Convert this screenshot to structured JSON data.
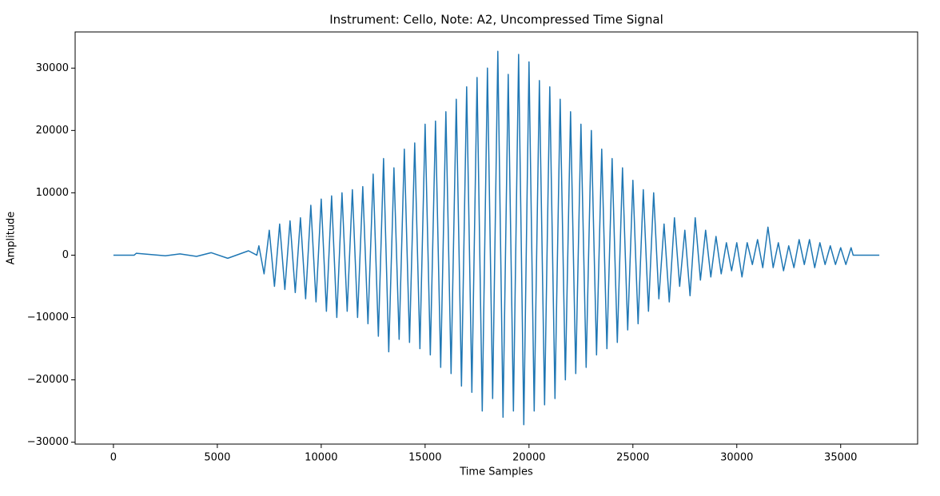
{
  "chart_data": {
    "type": "line",
    "title": "Instrument: Cello, Note: A2, Uncompressed Time Signal",
    "xlabel": "Time Samples",
    "ylabel": "Amplitude",
    "x": [
      0,
      1000,
      1100,
      2500,
      3200,
      4000,
      4700,
      5500,
      6500,
      6900,
      7000,
      7250,
      7500,
      7750,
      8000,
      8250,
      8500,
      8750,
      9000,
      9250,
      9500,
      9750,
      10000,
      10250,
      10500,
      10750,
      11000,
      11250,
      11500,
      11750,
      12000,
      12250,
      12500,
      12750,
      13000,
      13250,
      13500,
      13750,
      14000,
      14250,
      14500,
      14750,
      15000,
      15250,
      15500,
      15750,
      16000,
      16250,
      16500,
      16750,
      17000,
      17250,
      17500,
      17750,
      18000,
      18250,
      18500,
      18750,
      19000,
      19250,
      19500,
      19750,
      20000,
      20250,
      20500,
      20750,
      21000,
      21250,
      21500,
      21750,
      22000,
      22250,
      22500,
      22750,
      23000,
      23250,
      23500,
      23750,
      24000,
      24250,
      24500,
      24750,
      25000,
      25250,
      25500,
      25750,
      26000,
      26250,
      26500,
      26750,
      27000,
      27250,
      27500,
      27750,
      28000,
      28250,
      28500,
      28750,
      29000,
      29250,
      29500,
      29750,
      30000,
      30250,
      30500,
      30750,
      31000,
      31250,
      31500,
      31750,
      32000,
      32250,
      32500,
      32750,
      33000,
      33250,
      33500,
      33750,
      34000,
      34250,
      34500,
      34750,
      35000,
      35250,
      35500,
      35600,
      36860
    ],
    "series": [
      {
        "name": "signal",
        "color": "#1f77b4",
        "values": [
          0,
          0,
          300,
          -100,
          200,
          -200,
          400,
          -500,
          700,
          0,
          1500,
          -3000,
          4000,
          -5000,
          5000,
          -5500,
          5500,
          -6000,
          6000,
          -7000,
          8000,
          -7500,
          9000,
          -9000,
          9500,
          -10000,
          10000,
          -9000,
          10500,
          -10000,
          11000,
          -11000,
          13000,
          -13000,
          15500,
          -15500,
          14000,
          -13500,
          17000,
          -14000,
          18000,
          -15000,
          21000,
          -16000,
          21500,
          -18000,
          23000,
          -19000,
          25000,
          -21000,
          27000,
          -22000,
          28500,
          -25000,
          30000,
          -23000,
          32700,
          -26000,
          29000,
          -25000,
          32200,
          -27200,
          31000,
          -25000,
          28000,
          -24000,
          27000,
          -23000,
          25000,
          -20000,
          23000,
          -19000,
          21000,
          -18000,
          20000,
          -16000,
          17000,
          -15000,
          15500,
          -14000,
          14000,
          -12000,
          12000,
          -11000,
          10500,
          -9000,
          10000,
          -7000,
          5000,
          -7500,
          6000,
          -5000,
          4000,
          -6500,
          6000,
          -4000,
          4000,
          -3500,
          3000,
          -3000,
          2000,
          -2500,
          2000,
          -3500,
          2000,
          -1500,
          2500,
          -2000,
          4500,
          -2000,
          2000,
          -2500,
          1500,
          -2000,
          2500,
          -1500,
          2500,
          -2000,
          2000,
          -1500,
          1500,
          -1500,
          1200,
          -1500,
          1200,
          0,
          0
        ]
      }
    ],
    "xlim": [
      -1843,
      38703
    ],
    "ylim": [
      -30300,
      35800
    ],
    "xticks": [
      0,
      5000,
      10000,
      15000,
      20000,
      25000,
      30000,
      35000
    ],
    "yticks": [
      {
        "value": -30000,
        "label": "−30000"
      },
      {
        "value": -20000,
        "label": "−20000"
      },
      {
        "value": -10000,
        "label": "−10000"
      },
      0,
      10000,
      20000,
      30000
    ]
  }
}
